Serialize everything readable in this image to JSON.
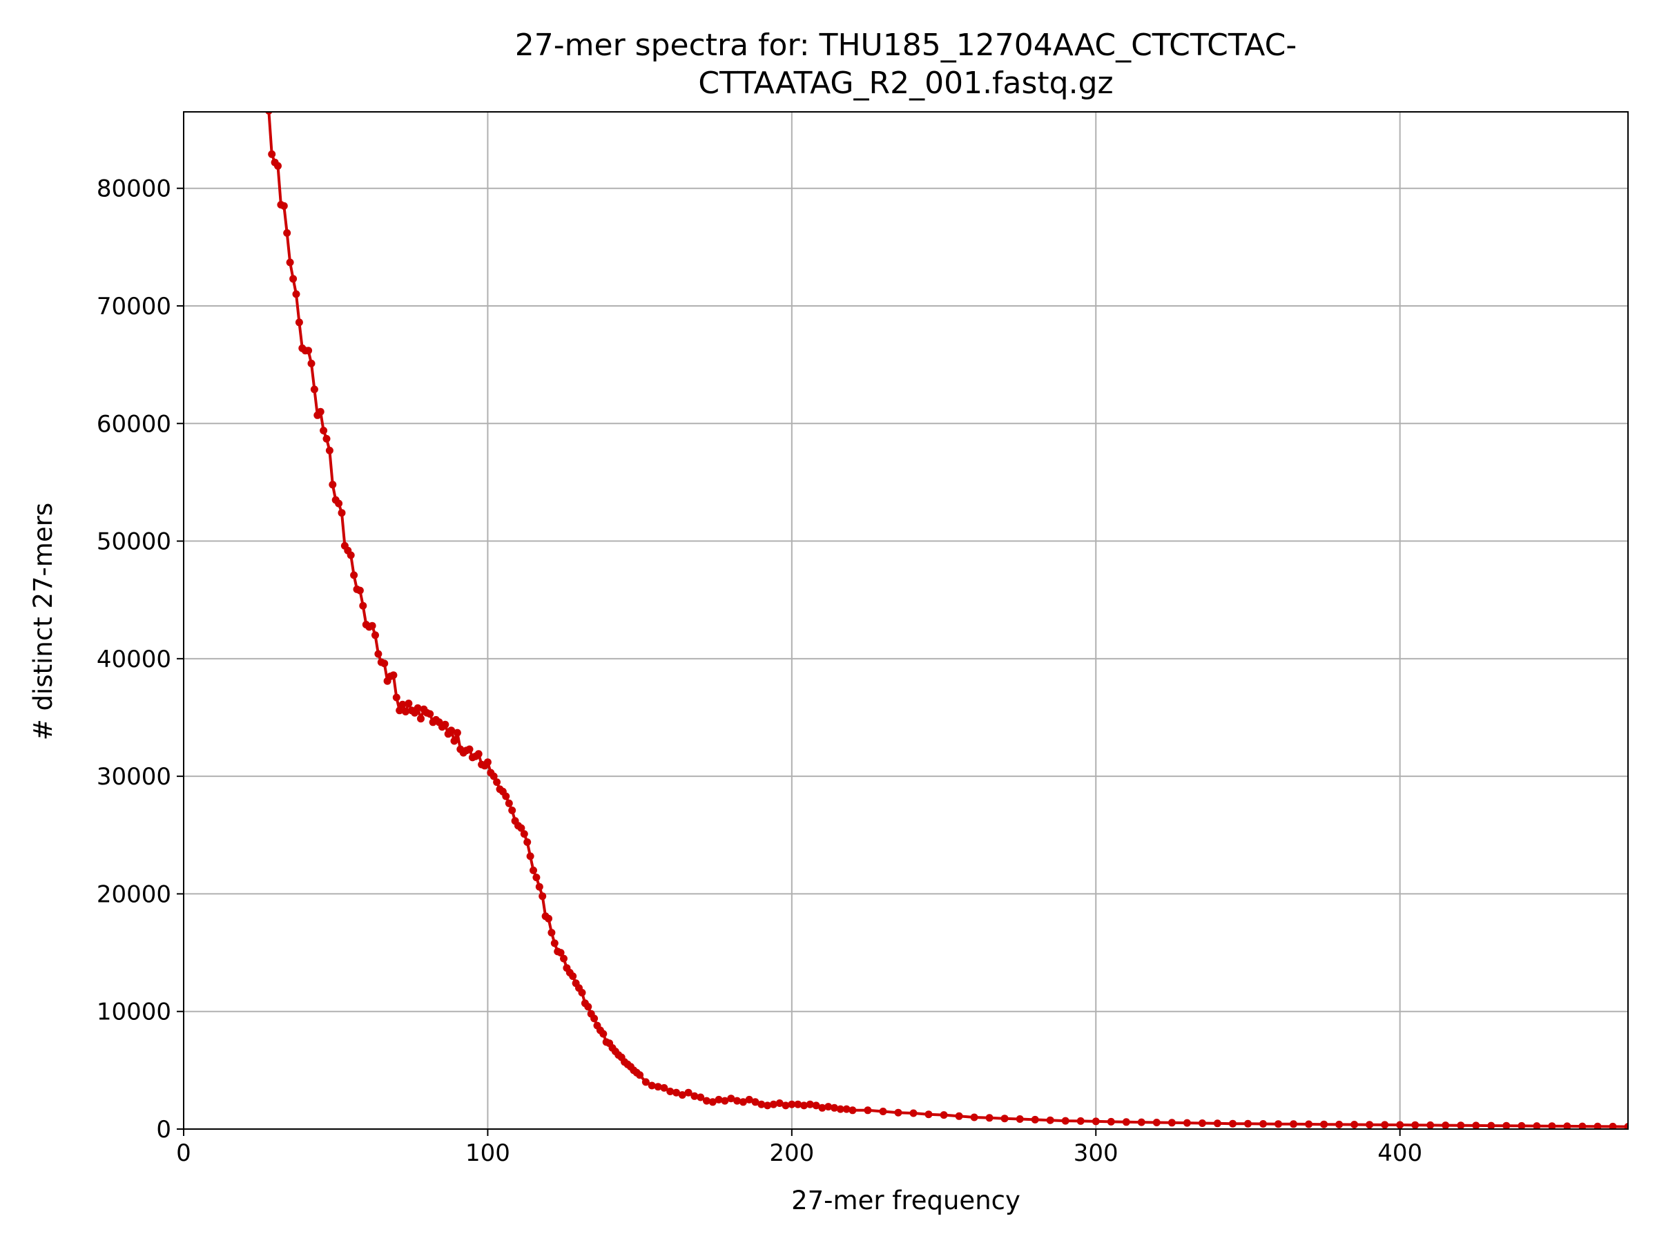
{
  "chart_data": {
    "type": "line",
    "title_lines": [
      "27-mer spectra for: THU185_12704AAC_CTCTCTAC-",
      "CTTAATAG_R2_001.fastq.gz"
    ],
    "xlabel": "27-mer frequency",
    "ylabel": "# distinct 27-mers",
    "xlim": [
      0,
      475
    ],
    "ylim": [
      0,
      86500
    ],
    "x_ticks": [
      0,
      100,
      200,
      300,
      400
    ],
    "y_ticks": [
      0,
      10000,
      20000,
      30000,
      40000,
      50000,
      60000,
      70000,
      80000
    ],
    "grid": true,
    "legend": "none",
    "line_color": "#cc0000",
    "marker": "circle",
    "series": [
      {
        "x": [
          28,
          29,
          30,
          31,
          32,
          33,
          34,
          35,
          36,
          37,
          38,
          39,
          40,
          41,
          42,
          43,
          44,
          45,
          46,
          47,
          48,
          49,
          50,
          51,
          52,
          53,
          54,
          55,
          56,
          57,
          58,
          59,
          60,
          61,
          62,
          63,
          64,
          65,
          66,
          67,
          68,
          69,
          70,
          71,
          72,
          73,
          74,
          75,
          76,
          77,
          78,
          79,
          80,
          81,
          82,
          83,
          84,
          85,
          86,
          87,
          88,
          89,
          90,
          91,
          92,
          93,
          94,
          95,
          96,
          97,
          98,
          99,
          100,
          101,
          102,
          103,
          104,
          105,
          106,
          107,
          108,
          109,
          110,
          111,
          112,
          113,
          114,
          115,
          116,
          117,
          118,
          119,
          120,
          121,
          122,
          123,
          124,
          125,
          126,
          127,
          128,
          129,
          130,
          131,
          132,
          133,
          134,
          135,
          136,
          137,
          138,
          139,
          140,
          141,
          142,
          143,
          144,
          145,
          146,
          147,
          148,
          149,
          150,
          152,
          154,
          156,
          158,
          160,
          162,
          164,
          166,
          168,
          170,
          172,
          174,
          176,
          178,
          180,
          182,
          184,
          186,
          188,
          190,
          192,
          194,
          196,
          198,
          200,
          202,
          204,
          206,
          208,
          210,
          212,
          214,
          216,
          218,
          220,
          225,
          230,
          235,
          240,
          245,
          250,
          255,
          260,
          265,
          270,
          275,
          280,
          285,
          290,
          295,
          300,
          305,
          310,
          315,
          320,
          325,
          330,
          335,
          340,
          345,
          350,
          355,
          360,
          365,
          370,
          375,
          380,
          385,
          390,
          395,
          400,
          405,
          410,
          415,
          420,
          425,
          430,
          435,
          440,
          445,
          450,
          455,
          460,
          465,
          470,
          475
        ],
        "y": [
          86600,
          82900,
          82200,
          81900,
          78600,
          78500,
          76200,
          73700,
          72300,
          71000,
          68600,
          66400,
          66200,
          66200,
          65100,
          62900,
          60700,
          61000,
          59400,
          58700,
          57700,
          54800,
          53500,
          53200,
          52400,
          49600,
          49200,
          48800,
          47100,
          45900,
          45800,
          44500,
          42900,
          42700,
          42800,
          42000,
          40400,
          39700,
          39600,
          38100,
          38500,
          38600,
          36700,
          35600,
          36100,
          35500,
          36200,
          35600,
          35400,
          35800,
          34900,
          35700,
          35400,
          35300,
          34600,
          34800,
          34600,
          34200,
          34400,
          33600,
          33900,
          33000,
          33700,
          32300,
          32000,
          32200,
          32300,
          31600,
          31700,
          31900,
          31000,
          30900,
          31200,
          30300,
          30000,
          29500,
          28900,
          28700,
          28300,
          27700,
          27100,
          26200,
          25800,
          25600,
          25100,
          24400,
          23200,
          22000,
          21400,
          20600,
          19800,
          18100,
          17900,
          16700,
          15800,
          15100,
          15000,
          14500,
          13700,
          13300,
          13000,
          12400,
          12000,
          11600,
          10700,
          10400,
          9800,
          9400,
          8800,
          8400,
          8100,
          7400,
          7300,
          6900,
          6600,
          6300,
          6100,
          5700,
          5500,
          5300,
          5000,
          4800,
          4600,
          4000,
          3700,
          3600,
          3500,
          3200,
          3100,
          2900,
          3100,
          2800,
          2700,
          2400,
          2300,
          2500,
          2400,
          2600,
          2400,
          2300,
          2500,
          2300,
          2100,
          2000,
          2100,
          2200,
          2000,
          2100,
          2100,
          2000,
          2100,
          2000,
          1800,
          1900,
          1800,
          1700,
          1700,
          1600,
          1600,
          1500,
          1400,
          1350,
          1250,
          1200,
          1100,
          1000,
          950,
          900,
          850,
          800,
          750,
          700,
          680,
          650,
          620,
          600,
          580,
          560,
          540,
          520,
          500,
          480,
          460,
          450,
          440,
          430,
          420,
          410,
          400,
          390,
          380,
          370,
          360,
          350,
          340,
          330,
          320,
          310,
          300,
          290,
          280,
          270,
          260,
          250,
          240,
          230,
          220,
          210,
          200
        ]
      }
    ]
  }
}
